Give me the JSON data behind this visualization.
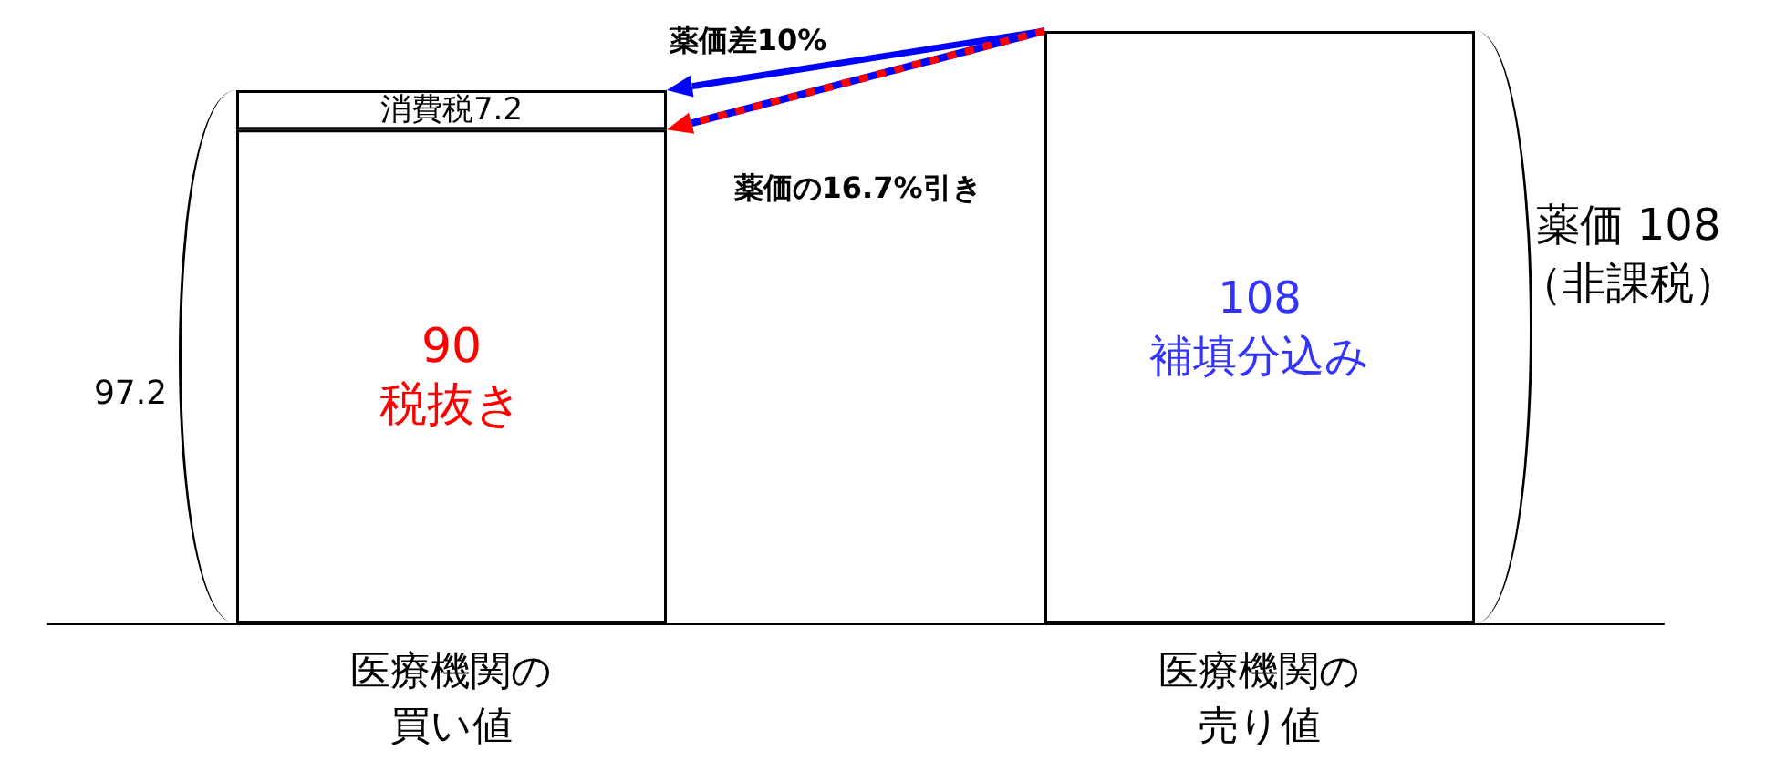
{
  "chart_data": {
    "type": "bar",
    "stacked": true,
    "categories": [
      "医療機関の買い値",
      "医療機関の売り値"
    ],
    "series": [
      {
        "color": "#ffffff",
        "values": [
          90,
          108
        ],
        "value_labels": [
          "90\n税抜き",
          "108\n補填分込み"
        ]
      },
      {
        "color": "#ffffff",
        "values": [
          7.2,
          null
        ],
        "value_labels": [
          "消費税7.2",
          null
        ]
      }
    ],
    "annotations": [
      "97.2",
      "薬価 108\n（非課税）",
      "薬価差10%",
      "薬価の16.7%引き"
    ]
  }
}
